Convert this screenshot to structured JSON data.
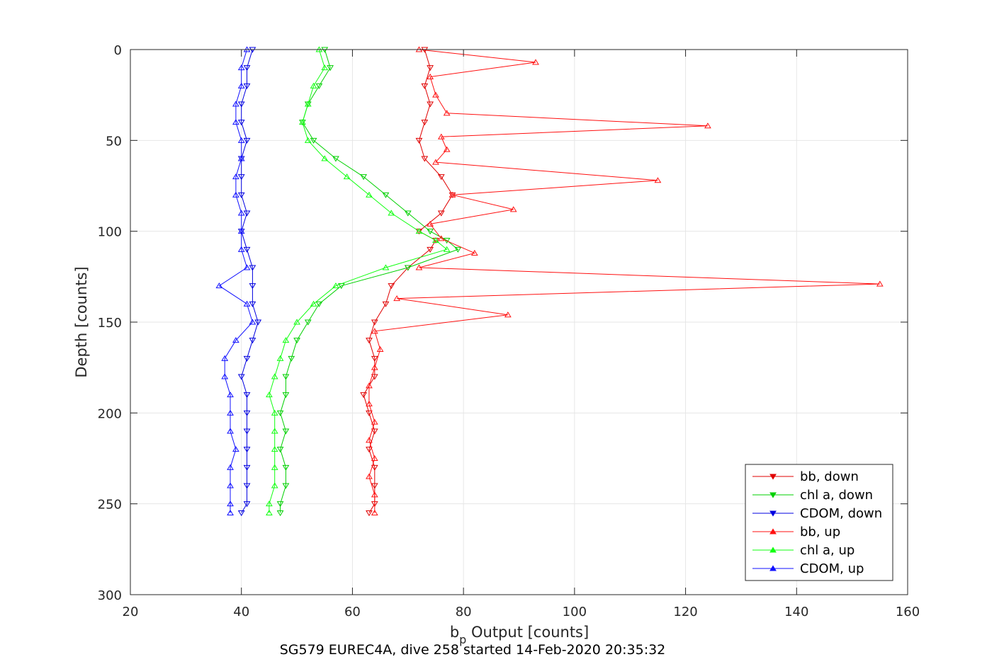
{
  "chart_data": {
    "type": "line",
    "xlabel_main": "b",
    "xlabel_sub": "p",
    "xlabel_rest": " Output [counts]",
    "ylabel": "Depth [counts]",
    "caption": "SG579 EUREC4A, dive 258 started 14-Feb-2020 20:35:32",
    "xlim": [
      20,
      160
    ],
    "ylim": [
      0,
      300
    ],
    "y_reversed": true,
    "grid": true,
    "xticks": [
      "20",
      "40",
      "60",
      "80",
      "100",
      "120",
      "140",
      "160"
    ],
    "yticks": [
      "0",
      "50",
      "100",
      "150",
      "200",
      "250",
      "300"
    ],
    "legend_location": "bottom-right",
    "series": [
      {
        "name": "bb, down",
        "color": "#e00000",
        "marker": "down",
        "depth": [
          0,
          10,
          20,
          30,
          40,
          50,
          60,
          70,
          80,
          90,
          100,
          105,
          110,
          120,
          130,
          140,
          150,
          160,
          170,
          180,
          190,
          200,
          210,
          220,
          230,
          240,
          250,
          255
        ],
        "x": [
          73,
          74,
          73,
          74,
          73,
          72,
          73,
          76,
          78,
          76,
          72,
          75,
          74,
          70,
          67,
          66,
          64,
          63,
          64,
          64,
          62,
          63,
          64,
          63,
          64,
          64,
          64,
          63
        ]
      },
      {
        "name": "chl a, down",
        "color": "#00d000",
        "marker": "down",
        "depth": [
          0,
          10,
          20,
          30,
          40,
          50,
          60,
          70,
          80,
          90,
          100,
          105,
          110,
          120,
          130,
          140,
          150,
          160,
          170,
          180,
          190,
          200,
          210,
          220,
          230,
          240,
          250,
          255
        ],
        "x": [
          55,
          56,
          54,
          52,
          51,
          53,
          57,
          62,
          66,
          70,
          74,
          77,
          79,
          70,
          58,
          54,
          52,
          50,
          49,
          48,
          48,
          47,
          48,
          47,
          48,
          48,
          47,
          47
        ]
      },
      {
        "name": "CDOM, down",
        "color": "#0000e0",
        "marker": "down",
        "depth": [
          0,
          10,
          20,
          30,
          40,
          50,
          60,
          70,
          80,
          90,
          100,
          110,
          120,
          130,
          140,
          150,
          160,
          170,
          180,
          190,
          200,
          210,
          220,
          230,
          240,
          250,
          255
        ],
        "x": [
          42,
          41,
          41,
          40,
          40,
          41,
          40,
          40,
          40,
          41,
          40,
          41,
          42,
          42,
          42,
          43,
          42,
          41,
          40,
          41,
          41,
          41,
          41,
          41,
          41,
          41,
          40
        ]
      },
      {
        "name": "bb, up",
        "color": "#ff1010",
        "marker": "up",
        "depth": [
          0,
          7,
          15,
          25,
          35,
          42,
          48,
          55,
          62,
          72,
          80,
          88,
          96,
          104,
          112,
          120,
          129,
          137,
          146,
          155,
          165,
          175,
          185,
          195,
          205,
          215,
          225,
          235,
          245,
          255
        ],
        "x": [
          72,
          93,
          74,
          75,
          77,
          124,
          76,
          77,
          75,
          115,
          78,
          89,
          74,
          76,
          82,
          72,
          155,
          68,
          88,
          64,
          65,
          64,
          63,
          63,
          64,
          63,
          64,
          63,
          64,
          64
        ]
      },
      {
        "name": "chl a, up",
        "color": "#10ff10",
        "marker": "up",
        "depth": [
          0,
          10,
          20,
          30,
          40,
          50,
          60,
          70,
          80,
          90,
          100,
          105,
          110,
          120,
          130,
          140,
          150,
          160,
          170,
          180,
          190,
          200,
          210,
          220,
          230,
          240,
          250,
          255
        ],
        "x": [
          54,
          55,
          53,
          52,
          51,
          52,
          55,
          59,
          63,
          67,
          72,
          75,
          77,
          66,
          57,
          53,
          50,
          48,
          47,
          46,
          45,
          46,
          46,
          46,
          46,
          46,
          45,
          45
        ]
      },
      {
        "name": "CDOM, up",
        "color": "#1010ff",
        "marker": "up",
        "depth": [
          0,
          10,
          20,
          30,
          40,
          50,
          60,
          70,
          80,
          90,
          100,
          110,
          120,
          130,
          140,
          150,
          160,
          170,
          180,
          190,
          200,
          210,
          220,
          230,
          240,
          250,
          255
        ],
        "x": [
          41,
          40,
          40,
          39,
          39,
          40,
          40,
          39,
          39,
          40,
          40,
          40,
          41,
          36,
          41,
          42,
          39,
          37,
          37,
          38,
          38,
          38,
          39,
          38,
          38,
          38,
          38
        ]
      }
    ]
  }
}
